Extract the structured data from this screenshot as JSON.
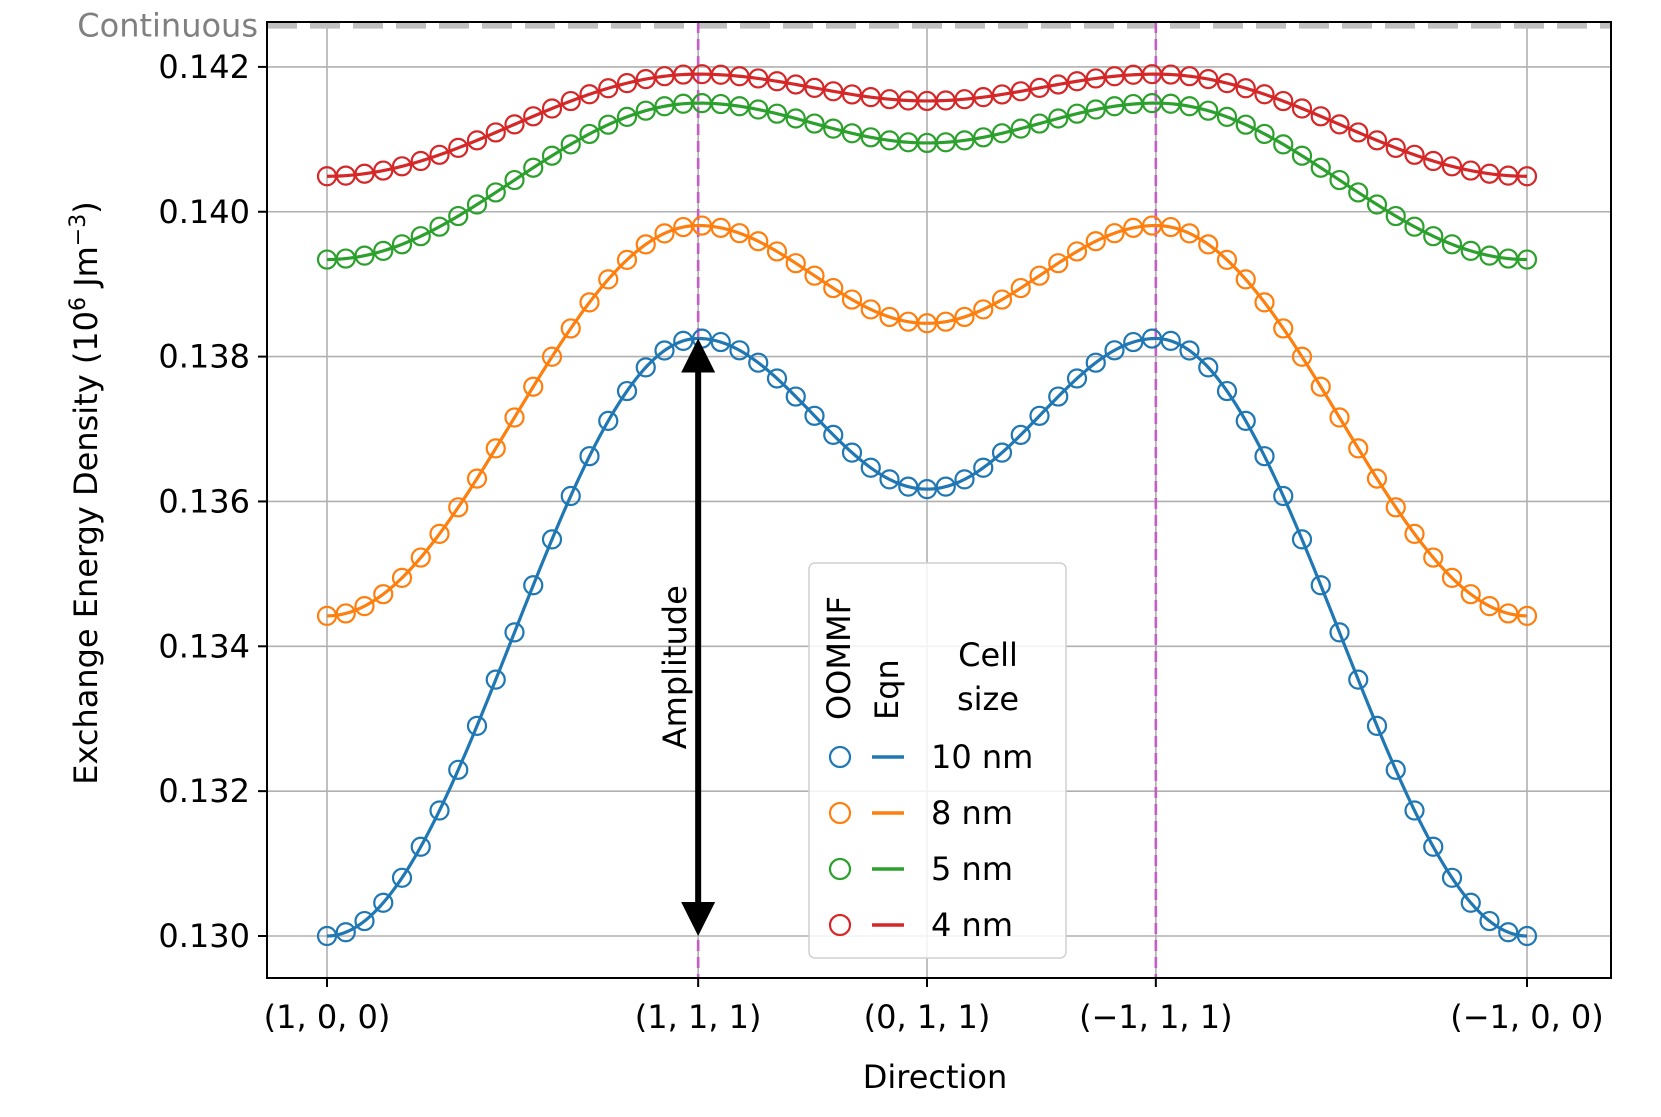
{
  "chart_data": {
    "type": "line",
    "title": "",
    "xlabel": "Direction",
    "ylabel": "Exchange Energy Density (10^6 Jm^-3)",
    "ylabel_parts": {
      "base": "Exchange Energy Density (10",
      "exp1": "6",
      "mid": " Jm",
      "exp2": "−3",
      "end": ")"
    },
    "xlim": [
      -0.25,
      5.35
    ],
    "ylim": [
      0.12942,
      0.14262
    ],
    "x_ticks": [
      {
        "value": 0,
        "label": "(1, 0, 0)"
      },
      {
        "value": 1.5465,
        "label": "(1, 1, 1)"
      },
      {
        "value": 2.5,
        "label": "(0, 1, 1)"
      },
      {
        "value": 3.4535,
        "label": "(−1, 1, 1)"
      },
      {
        "value": 5,
        "label": "(−1, 0, 0)"
      }
    ],
    "y_ticks": [
      {
        "value": 0.13,
        "label": "0.130"
      },
      {
        "value": 0.132,
        "label": "0.132"
      },
      {
        "value": 0.134,
        "label": "0.134"
      },
      {
        "value": 0.136,
        "label": "0.136"
      },
      {
        "value": 0.138,
        "label": "0.138"
      },
      {
        "value": 0.14,
        "label": "0.140"
      },
      {
        "value": 0.142,
        "label": "0.142"
      }
    ],
    "grid": true,
    "continuous_line": {
      "value": 0.14257,
      "label": "Continuous",
      "color": "#c0c0c0",
      "label_color": "#808080"
    },
    "vertical_markers": [
      1.5465,
      3.4535
    ],
    "vertical_marker_color": "#c45ec4",
    "annotation": {
      "text": "Amplitude",
      "x": 1.5465,
      "y_from": 0.13,
      "y_to": 0.13825
    },
    "legend": {
      "position": "lower-center",
      "col_headers": [
        "OOMMF",
        "Eqn"
      ],
      "cell_header": [
        "Cell",
        "size"
      ]
    },
    "marker_count": 65,
    "series": [
      {
        "name": "10 nm",
        "color": "#1f77b4",
        "endpoints": [
          0.13,
          0.13
        ],
        "peaks": [
          0.13825,
          0.13825
        ],
        "center": 0.13617
      },
      {
        "name": "8 nm",
        "color": "#ff7f0e",
        "endpoints": [
          0.13442,
          0.13442
        ],
        "peaks": [
          0.13981,
          0.13981
        ],
        "center": 0.13846
      },
      {
        "name": "5 nm",
        "color": "#2ca02c",
        "endpoints": [
          0.13934,
          0.13934
        ],
        "peaks": [
          0.1415,
          0.1415
        ],
        "center": 0.14095
      },
      {
        "name": "4 nm",
        "color": "#d62728",
        "endpoints": [
          0.14049,
          0.14049
        ],
        "peaks": [
          0.1419,
          0.1419
        ],
        "center": 0.14153
      }
    ]
  }
}
